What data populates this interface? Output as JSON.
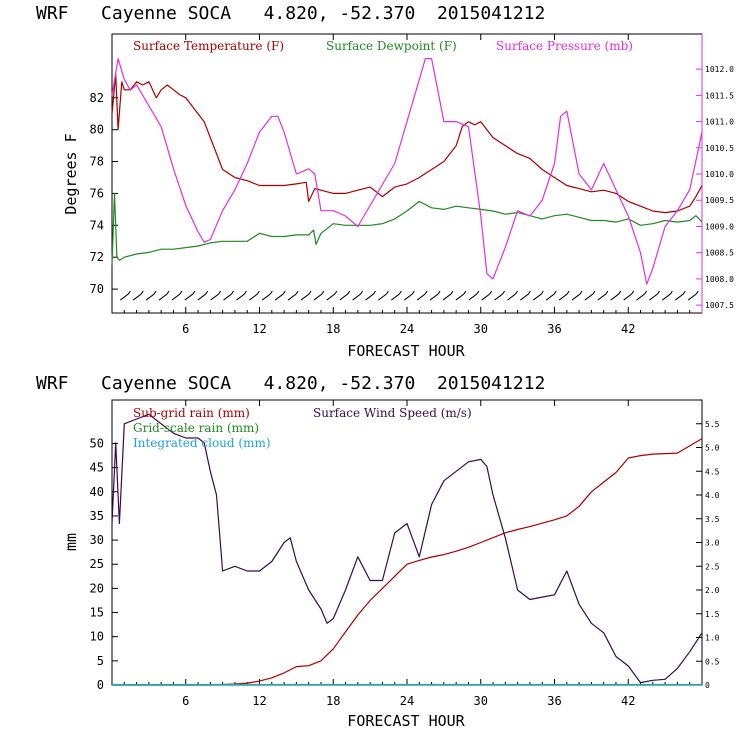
{
  "chart_data": [
    {
      "type": "line",
      "title": "WRF   Cayenne SOCA   4.820, -52.370  2015041212",
      "xlabel": "FORECAST HOUR",
      "ylabel": "Degrees F",
      "xlim": [
        0,
        48
      ],
      "ylim": [
        68.5,
        86
      ],
      "y2lim": [
        1007.35,
        1012.67
      ],
      "xticks": [
        6,
        12,
        18,
        24,
        30,
        36,
        42
      ],
      "yticks": [
        70,
        72,
        74,
        76,
        78,
        80,
        82
      ],
      "y2ticks": [
        "1007.5",
        "1008.0",
        "1008.5",
        "1009.0",
        "1009.5",
        "1010.0",
        "1010.5",
        "1011.0",
        "1011.5",
        "1012.0"
      ],
      "series": [
        {
          "name": "Surface Temperature (F)",
          "color": "#aa0000",
          "axis": "left",
          "x": [
            0,
            0.3,
            0.5,
            0.8,
            1,
            1.5,
            2,
            2.5,
            3,
            3.3,
            3.6,
            4,
            4.5,
            5,
            5.5,
            6,
            6.5,
            7,
            7.5,
            8,
            8.5,
            9,
            10,
            11,
            12,
            13,
            14,
            15,
            15.8,
            16,
            16.5,
            17,
            18,
            19,
            20,
            21,
            22,
            23,
            24,
            25,
            26,
            27,
            28,
            28.5,
            29,
            29.5,
            30,
            30.5,
            31,
            32,
            33,
            34,
            35,
            36,
            37,
            38,
            39,
            40,
            41,
            42,
            43,
            44,
            45,
            46,
            47,
            47.5,
            48
          ],
          "y": [
            81,
            83.5,
            80,
            83,
            82.5,
            82.5,
            83,
            82.8,
            83,
            82.5,
            82,
            82.5,
            82.8,
            82.5,
            82.2,
            82,
            81.5,
            81,
            80.5,
            79.5,
            78.5,
            77.5,
            77,
            76.8,
            76.5,
            76.5,
            76.5,
            76.6,
            76.7,
            75.5,
            76.3,
            76.2,
            76,
            76,
            76.2,
            76.4,
            75.8,
            76.4,
            76.6,
            77,
            77.5,
            78,
            79,
            80.2,
            80.5,
            80.3,
            80.5,
            80,
            79.5,
            79,
            78.5,
            78.2,
            77.5,
            77,
            76.5,
            76.3,
            76.1,
            76.2,
            76,
            75.5,
            75.2,
            74.9,
            74.8,
            74.9,
            75.2,
            75.8,
            76.5
          ]
        },
        {
          "name": "Surface Dewpoint (F)",
          "color": "#228822",
          "axis": "left",
          "x": [
            0,
            0.2,
            0.4,
            0.6,
            1,
            2,
            3,
            4,
            5,
            6,
            7,
            8,
            9,
            10,
            11,
            12,
            13,
            14,
            15,
            16,
            16.4,
            16.6,
            17,
            18,
            19,
            20,
            21,
            22,
            23,
            24,
            25,
            26,
            27,
            28,
            29,
            30,
            31,
            32,
            33,
            34,
            35,
            36,
            37,
            38,
            39,
            40,
            41,
            42,
            43,
            44,
            45,
            46,
            47,
            47.5,
            48
          ],
          "y": [
            71.5,
            76,
            72,
            71.8,
            72,
            72.2,
            72.3,
            72.5,
            72.5,
            72.6,
            72.7,
            72.9,
            73,
            73,
            73,
            73.5,
            73.3,
            73.3,
            73.4,
            73.4,
            73.7,
            72.8,
            73.5,
            74.1,
            74,
            74,
            74,
            74.1,
            74.4,
            74.9,
            75.5,
            75.1,
            75,
            75.2,
            75.1,
            75,
            74.9,
            74.7,
            74.8,
            74.6,
            74.4,
            74.6,
            74.7,
            74.5,
            74.3,
            74.3,
            74.2,
            74.4,
            74,
            74.1,
            74.3,
            74.2,
            74.3,
            74.6,
            74.2
          ]
        },
        {
          "name": "Surface Pressure (mb)",
          "color": "#e030e0",
          "axis": "right",
          "x": [
            0,
            0.5,
            1,
            1.5,
            2,
            3,
            4,
            5,
            6,
            7,
            7.5,
            8,
            9,
            10,
            11,
            12,
            13,
            13.5,
            14,
            15,
            16,
            16.5,
            17,
            18,
            19,
            20,
            21,
            22,
            23,
            24,
            25,
            25.5,
            26,
            27,
            28,
            29,
            30,
            30.5,
            31,
            32,
            33,
            34,
            35,
            36,
            36.5,
            37,
            38,
            39,
            40,
            41,
            42,
            43,
            43.5,
            44,
            45,
            46,
            47,
            48
          ],
          "y": [
            1011.5,
            1012.2,
            1011.8,
            1011.6,
            1011.7,
            1011.3,
            1010.9,
            1010.1,
            1009.4,
            1008.9,
            1008.7,
            1008.75,
            1009.3,
            1009.7,
            1010.2,
            1010.8,
            1011.1,
            1011.1,
            1010.8,
            1010.0,
            1010.1,
            1010.0,
            1009.3,
            1009.3,
            1009.2,
            1009.0,
            1009.4,
            1009.8,
            1010.2,
            1011.0,
            1011.8,
            1012.2,
            1012.2,
            1011.0,
            1011.0,
            1010.9,
            1009.2,
            1008.1,
            1008.0,
            1008.6,
            1009.3,
            1009.2,
            1009.5,
            1010.2,
            1011.1,
            1011.2,
            1010.0,
            1009.7,
            1010.2,
            1009.7,
            1009.2,
            1008.5,
            1007.9,
            1008.2,
            1009.0,
            1009.3,
            1009.7,
            1010.8
          ]
        }
      ],
      "wind_barbs_y": 69.5
    },
    {
      "type": "line",
      "title": "WRF   Cayenne SOCA   4.820, -52.370  2015041212",
      "xlabel": "FORECAST HOUR",
      "ylabel": "mm",
      "xlim": [
        0,
        48
      ],
      "ylim": [
        0,
        59
      ],
      "y2lim": [
        0,
        6.0
      ],
      "xticks": [
        6,
        12,
        18,
        24,
        30,
        36,
        42
      ],
      "yticks": [
        0,
        5,
        10,
        15,
        20,
        25,
        30,
        35,
        40,
        45,
        50
      ],
      "y2ticks": [
        "0",
        "0.5",
        "1.0",
        "1.5",
        "2.0",
        "2.5",
        "3.0",
        "3.5",
        "4.0",
        "4.5",
        "5.0",
        "5.5"
      ],
      "legend_extra": "Surface Wind Speed (m/s)",
      "series": [
        {
          "name": "Sub-grid rain (mm)",
          "color": "#aa0000",
          "axis": "left",
          "x": [
            0,
            8,
            9,
            10,
            11,
            12,
            13,
            14,
            15,
            16,
            17,
            18,
            19,
            20,
            21,
            22,
            23,
            24,
            25,
            26,
            27,
            28,
            29,
            30,
            31,
            32,
            33,
            34,
            35,
            36,
            37,
            38,
            39,
            40,
            41,
            42,
            43,
            44,
            45,
            46,
            47,
            48
          ],
          "y": [
            0,
            0,
            0.1,
            0.2,
            0.4,
            0.8,
            1.5,
            2.5,
            3.8,
            4.0,
            5.0,
            7.5,
            11.0,
            14.5,
            17.5,
            20.0,
            22.5,
            25.0,
            25.8,
            26.5,
            27.0,
            27.7,
            28.5,
            29.5,
            30.5,
            31.5,
            32.2,
            32.8,
            33.5,
            34.2,
            35.0,
            37.0,
            40.0,
            42.0,
            44.0,
            47.0,
            47.5,
            47.8,
            47.9,
            48.0,
            49.5,
            51.0
          ]
        },
        {
          "name": "Grid-scale rain (mm)",
          "color": "#228822",
          "axis": "left",
          "x": [
            0,
            48
          ],
          "y": [
            0,
            0
          ]
        },
        {
          "name": "Integrated cloud (mm)",
          "color": "#1ca3d8",
          "axis": "left",
          "x": [
            0,
            48
          ],
          "y": [
            0.1,
            0.1
          ]
        },
        {
          "name": "Surface Wind Speed (m/s)",
          "color": "#3a0a4a",
          "axis": "right",
          "x": [
            0,
            0.3,
            0.6,
            1,
            2,
            3,
            4,
            5,
            6,
            7,
            7.5,
            8,
            8.5,
            9,
            10,
            11,
            12,
            13,
            14,
            14.5,
            15,
            16,
            17,
            17.5,
            18,
            19,
            20,
            21,
            22,
            23,
            24,
            25,
            26,
            27,
            28,
            29,
            30,
            30.5,
            31,
            32,
            33,
            34,
            35,
            36,
            37,
            38,
            39,
            40,
            41,
            42,
            43,
            44,
            45,
            46,
            47,
            48
          ],
          "y": [
            3.4,
            5.1,
            3.4,
            5.5,
            5.6,
            5.7,
            5.5,
            5.3,
            5.2,
            5.2,
            5.1,
            4.5,
            4.0,
            2.4,
            2.5,
            2.4,
            2.4,
            2.6,
            3.0,
            3.1,
            2.6,
            2.0,
            1.6,
            1.3,
            1.4,
            2.0,
            2.7,
            2.2,
            2.2,
            3.2,
            3.4,
            2.7,
            3.8,
            4.3,
            4.5,
            4.7,
            4.75,
            4.6,
            4.0,
            3.1,
            2.0,
            1.8,
            1.85,
            1.9,
            2.4,
            1.7,
            1.3,
            1.1,
            0.6,
            0.4,
            0.05,
            0.1,
            0.12,
            0.35,
            0.7,
            1.1
          ]
        }
      ]
    }
  ]
}
